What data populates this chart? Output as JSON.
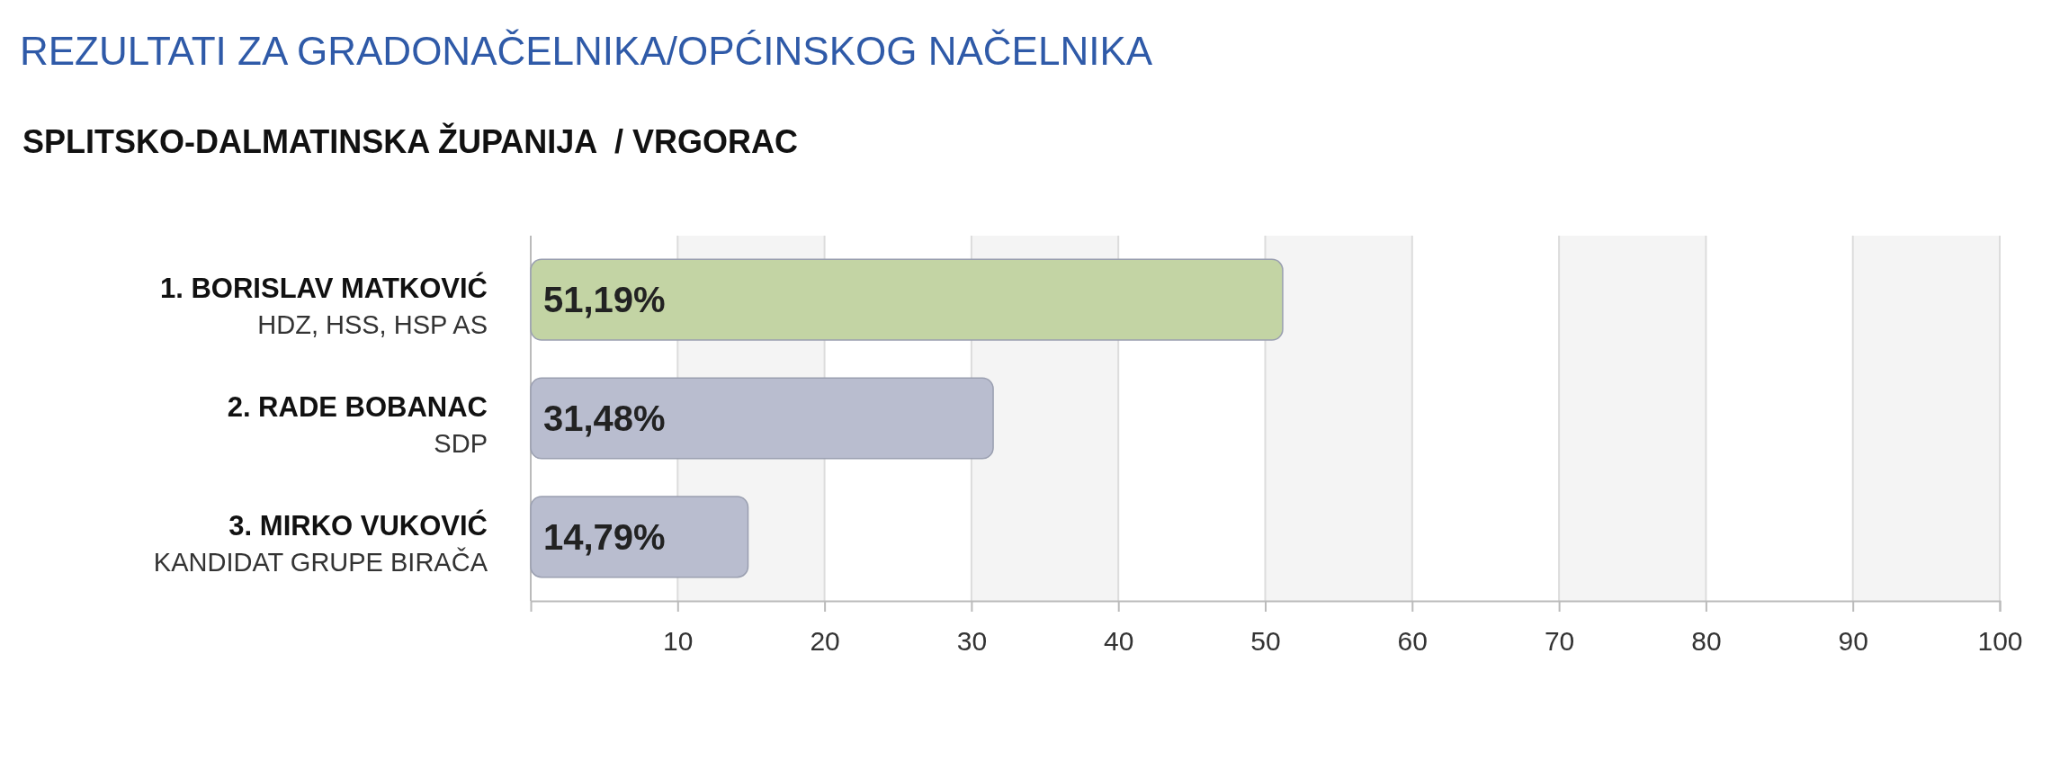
{
  "chart_data": {
    "type": "bar",
    "orientation": "horizontal",
    "title": "REZULTATI ZA GRADONAČELNIKA/OPĆINSKOG NAČELNIKA",
    "subtitle": "SPLITSKO-DALMATINSKA ŽUPANIJA  / VRGORAC",
    "categories": [
      "1. BORISLAV MATKOVIĆ\nHDZ, HSS, HSP AS",
      "2. RADE BOBANAC\nSDP",
      "3. MIRKO VUKOVIĆ\nKANDIDAT GRUPE BIRAČA"
    ],
    "values": [
      51.19,
      31.48,
      14.79
    ],
    "colors": [
      "#c3d4a4",
      "#b9bdcf",
      "#b9bdcf"
    ],
    "value_labels": [
      "51,19%",
      "31,48%",
      "14,79%"
    ],
    "xlim": [
      0,
      100
    ],
    "xticks": [
      10,
      20,
      30,
      40,
      50,
      60,
      70,
      80,
      90,
      100
    ],
    "grid": "x"
  }
}
